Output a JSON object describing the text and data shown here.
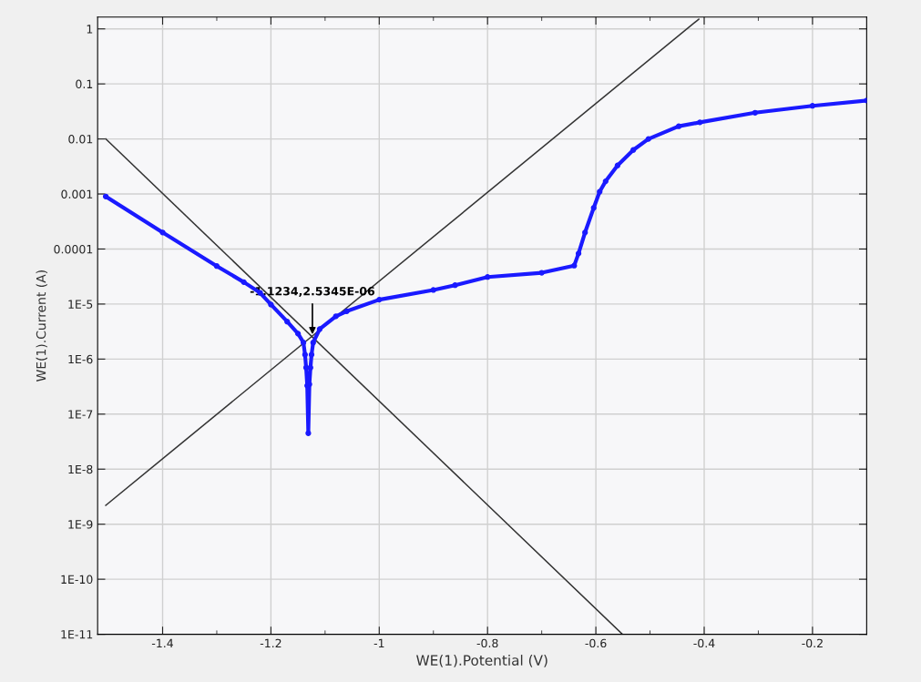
{
  "chart_data": {
    "type": "line",
    "xlabel": "WE(1).Potential (V)",
    "ylabel": "WE(1).Current (A)",
    "log": "y",
    "grid": true,
    "xlim": [
      -1.52,
      -0.1
    ],
    "xticks": [
      -1.4,
      -1.2,
      -1,
      -0.8,
      -0.6,
      -0.4,
      -0.2
    ],
    "ylim": [
      1e-11,
      1.64
    ],
    "yticks": [
      1,
      0.1,
      0.01,
      0.001,
      0.0001,
      {
        "value": 1e-05,
        "label": "1E-5"
      },
      {
        "value": 1e-06,
        "label": "1E-6"
      },
      {
        "value": 1e-07,
        "label": "1E-7"
      },
      {
        "value": 1e-08,
        "label": "1E-8"
      },
      {
        "value": 1e-09,
        "label": "1E-9"
      },
      {
        "value": 1e-10,
        "label": "1E-10"
      },
      {
        "value": 1e-11,
        "label": "1E-11"
      }
    ],
    "series": [
      {
        "color": "#1a1aff",
        "marker": "circle",
        "x": [
          -1.505,
          -1.4,
          -1.3,
          -1.25,
          -1.22,
          -1.2,
          -1.17,
          -1.15,
          -1.14,
          -1.137,
          -1.135,
          -1.133,
          -1.131,
          -1.129,
          -1.127,
          -1.125,
          -1.122,
          -1.11,
          -1.08,
          -1.06,
          -1.0,
          -0.9,
          -0.86,
          -0.8,
          -0.7,
          -0.64,
          -0.632,
          -0.62,
          -0.604,
          -0.593,
          -0.582,
          -0.56,
          -0.531,
          -0.503,
          -0.447,
          -0.408,
          -0.306,
          -0.2,
          -0.1
        ],
        "values": [
          0.0009,
          0.0002,
          4.9e-05,
          2.5e-05,
          1.6e-05,
          9.8e-06,
          4.8e-06,
          2.9e-06,
          2e-06,
          1.2e-06,
          7e-07,
          3.3e-07,
          4.5e-08,
          3.5e-07,
          7e-07,
          1.2e-06,
          2e-06,
          3.5e-06,
          6e-06,
          7.4e-06,
          1.2e-05,
          1.8e-05,
          2.2e-05,
          3.1e-05,
          3.7e-05,
          5e-05,
          8.3e-05,
          0.0002,
          0.00056,
          0.0011,
          0.0017,
          0.0033,
          0.0063,
          0.01,
          0.017,
          0.02,
          0.03,
          0.04,
          0.05
        ]
      },
      {
        "color": "#333333",
        "x": [
          -1.505,
          -0.551
        ],
        "values": [
          0.01,
          1e-11
        ]
      },
      {
        "color": "#333333",
        "x": [
          -1.505,
          -0.41
        ],
        "values": [
          2.2e-09,
          1.5
        ]
      }
    ],
    "annotations": [
      {
        "text": "-1.1234,2.5345E-06",
        "x": -1.1234,
        "y": 2.5345e-06
      }
    ]
  }
}
